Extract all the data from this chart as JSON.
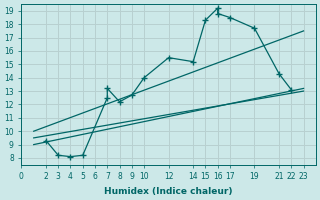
{
  "bg_color": "#cce8e8",
  "grid_color": "#b8d0d0",
  "line_color": "#006666",
  "xlabel": "Humidex (Indice chaleur)",
  "xlim": [
    0,
    24
  ],
  "ylim": [
    7.5,
    19.5
  ],
  "xticks": [
    0,
    2,
    3,
    4,
    5,
    6,
    7,
    8,
    9,
    10,
    12,
    14,
    15,
    16,
    17,
    19,
    21,
    22,
    23
  ],
  "yticks": [
    8,
    9,
    10,
    11,
    12,
    13,
    14,
    15,
    16,
    17,
    18,
    19
  ],
  "line1_x": [
    1,
    23
  ],
  "line1_y": [
    10.0,
    17.5
  ],
  "line2_x": [
    1,
    23
  ],
  "line2_y": [
    9.5,
    13.0
  ],
  "line3_x": [
    1,
    23
  ],
  "line3_y": [
    9.0,
    13.2
  ],
  "zigzag_x": [
    2,
    3,
    4,
    5,
    7,
    7,
    8,
    9,
    10,
    12,
    14,
    15,
    16,
    16,
    17,
    19,
    21,
    22
  ],
  "zigzag_y": [
    9.3,
    8.2,
    8.1,
    8.2,
    12.5,
    13.2,
    12.2,
    12.7,
    14.0,
    15.5,
    15.2,
    18.3,
    19.2,
    18.8,
    18.5,
    17.7,
    14.3,
    13.1
  ]
}
